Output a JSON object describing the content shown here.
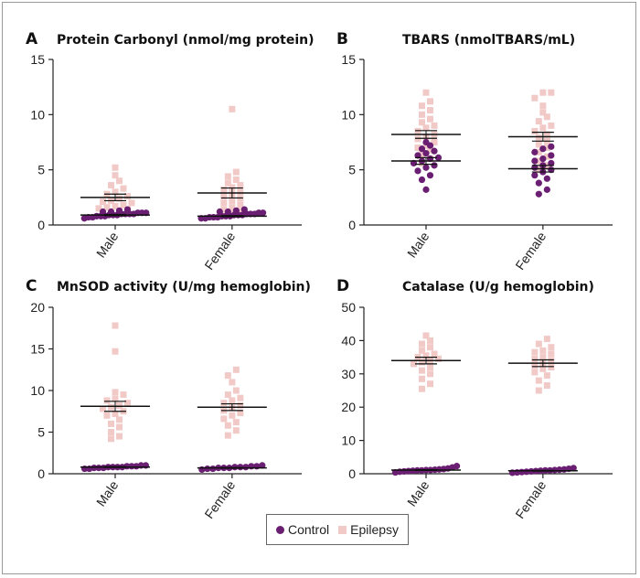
{
  "colors": {
    "control": "#6b1f73",
    "epilepsy": "#f1c9c7",
    "axis": "#222222"
  },
  "legend": {
    "control_label": "Control",
    "epilepsy_label": "Epilepsy"
  },
  "chart_data": [
    {
      "type": "scatter",
      "letter": "A",
      "title": "Protein Carbonyl (nmol/mg protein)",
      "categories": [
        "Male",
        "Female"
      ],
      "ylim": [
        0,
        15
      ],
      "yticks": [
        0,
        5,
        10,
        15
      ],
      "series": [
        {
          "name": "Control",
          "marker": "circle",
          "values": [
            [
              0.6,
              0.7,
              0.7,
              0.8,
              0.8,
              0.8,
              0.9,
              0.9,
              0.9,
              1.0,
              1.0,
              1.0,
              1.0,
              1.1,
              1.1,
              1.1,
              1.2,
              1.2,
              1.3,
              1.4
            ],
            [
              0.6,
              0.6,
              0.7,
              0.7,
              0.7,
              0.8,
              0.8,
              0.8,
              0.9,
              0.9,
              0.9,
              1.0,
              1.0,
              1.0,
              1.1,
              1.1,
              1.2,
              1.2,
              1.3,
              1.4
            ]
          ],
          "mean": [
            0.9,
            0.8
          ],
          "sem": [
            0.05,
            0.05
          ]
        },
        {
          "name": "Epilepsy",
          "marker": "square",
          "values": [
            [
              0.9,
              1.1,
              1.2,
              1.4,
              1.5,
              1.6,
              1.7,
              1.8,
              2.0,
              2.1,
              2.2,
              2.4,
              2.6,
              2.8,
              3.0,
              3.3,
              3.6,
              4.0,
              4.5,
              5.2
            ],
            [
              0.8,
              1.0,
              1.2,
              1.4,
              1.6,
              1.8,
              2.0,
              2.2,
              2.4,
              2.6,
              2.8,
              3.0,
              3.2,
              3.4,
              3.6,
              3.8,
              4.1,
              4.4,
              4.8,
              10.5
            ]
          ],
          "mean": [
            2.5,
            2.9
          ],
          "sem": [
            0.3,
            0.45
          ]
        }
      ]
    },
    {
      "type": "scatter",
      "letter": "B",
      "title": "TBARS (nmolTBARS/mL)",
      "categories": [
        "Male",
        "Female"
      ],
      "ylim": [
        0,
        15
      ],
      "yticks": [
        0,
        5,
        10,
        15
      ],
      "series": [
        {
          "name": "Control",
          "marker": "circle",
          "values": [
            [
              3.2,
              4.1,
              4.5,
              4.9,
              5.2,
              5.4,
              5.6,
              5.8,
              6.0,
              6.1,
              6.3,
              6.5,
              6.7,
              6.9,
              7.2,
              7.5
            ],
            [
              2.8,
              3.2,
              3.8,
              4.2,
              4.5,
              4.8,
              5.0,
              5.2,
              5.4,
              5.6,
              5.8,
              6.0,
              6.3,
              6.6,
              6.9,
              7.1
            ]
          ],
          "mean": [
            5.8,
            5.1
          ],
          "sem": [
            0.3,
            0.3
          ]
        },
        {
          "name": "Epilepsy",
          "marker": "square",
          "values": [
            [
              5.6,
              6.0,
              6.4,
              6.8,
              7.0,
              7.2,
              7.5,
              7.8,
              8.0,
              8.2,
              8.5,
              8.8,
              9.0,
              9.3,
              9.6,
              10.0,
              10.4,
              10.8,
              11.2,
              12.0
            ],
            [
              5.0,
              5.4,
              5.8,
              6.2,
              6.6,
              7.0,
              7.3,
              7.6,
              7.9,
              8.2,
              8.5,
              8.8,
              9.0,
              9.4,
              9.8,
              10.2,
              10.8,
              11.5,
              12.0,
              12.0
            ]
          ],
          "mean": [
            8.2,
            8.0
          ],
          "sem": [
            0.35,
            0.4
          ]
        }
      ]
    },
    {
      "type": "scatter",
      "letter": "C",
      "title": "MnSOD activity (U/mg hemoglobin)",
      "categories": [
        "Male",
        "Female"
      ],
      "ylim": [
        0,
        20
      ],
      "yticks": [
        0,
        5,
        10,
        15,
        20
      ],
      "series": [
        {
          "name": "Control",
          "marker": "circle",
          "values": [
            [
              0.6,
              0.6,
              0.7,
              0.7,
              0.7,
              0.8,
              0.8,
              0.8,
              0.8,
              0.9,
              0.9,
              0.9,
              1.0,
              1.0
            ],
            [
              0.5,
              0.6,
              0.6,
              0.7,
              0.7,
              0.7,
              0.8,
              0.8,
              0.8,
              0.9,
              0.9,
              1.0
            ]
          ],
          "mean": [
            0.8,
            0.7
          ],
          "sem": [
            0.05,
            0.05
          ]
        },
        {
          "name": "Epilepsy",
          "marker": "square",
          "values": [
            [
              4.2,
              4.5,
              5.0,
              5.6,
              6.0,
              6.5,
              7.0,
              7.2,
              7.5,
              7.8,
              8.0,
              8.2,
              8.5,
              8.8,
              9.0,
              9.5,
              9.8,
              14.7,
              17.8
            ],
            [
              4.6,
              5.2,
              5.8,
              6.2,
              6.6,
              7.0,
              7.3,
              7.6,
              7.9,
              8.2,
              8.5,
              8.8,
              9.1,
              9.5,
              10.0,
              11.0,
              11.8,
              12.5
            ]
          ],
          "mean": [
            8.1,
            8.0
          ],
          "sem": [
            0.6,
            0.4
          ]
        }
      ]
    },
    {
      "type": "scatter",
      "letter": "D",
      "title": "Catalase (U/g hemoglobin)",
      "categories": [
        "Male",
        "Female"
      ],
      "ylim": [
        0,
        50
      ],
      "yticks": [
        0,
        10,
        20,
        30,
        40,
        50
      ],
      "series": [
        {
          "name": "Control",
          "marker": "circle",
          "values": [
            [
              0.4,
              0.6,
              0.7,
              0.8,
              0.9,
              1.0,
              1.0,
              1.1,
              1.1,
              1.2,
              1.3,
              1.4,
              1.6,
              1.9,
              2.3
            ],
            [
              0.3,
              0.4,
              0.5,
              0.6,
              0.7,
              0.8,
              0.9,
              1.0,
              1.0,
              1.1,
              1.2,
              1.3,
              1.5,
              1.7
            ]
          ],
          "mean": [
            1.1,
            0.9
          ],
          "sem": [
            0.1,
            0.1
          ]
        },
        {
          "name": "Epilepsy",
          "marker": "square",
          "values": [
            [
              25.5,
              27.0,
              28.5,
              30.0,
              31.0,
              32.0,
              33.0,
              33.5,
              34.0,
              34.5,
              35.0,
              35.5,
              36.0,
              37.0,
              38.0,
              39.0,
              40.0,
              41.5
            ],
            [
              25.0,
              26.5,
              28.0,
              29.5,
              30.5,
              31.5,
              32.0,
              32.5,
              33.0,
              34.0,
              34.5,
              35.0,
              36.0,
              36.5,
              37.0,
              38.0,
              39.0,
              40.5
            ]
          ],
          "mean": [
            34.0,
            33.2
          ],
          "sem": [
            1.0,
            1.0
          ]
        }
      ]
    }
  ]
}
